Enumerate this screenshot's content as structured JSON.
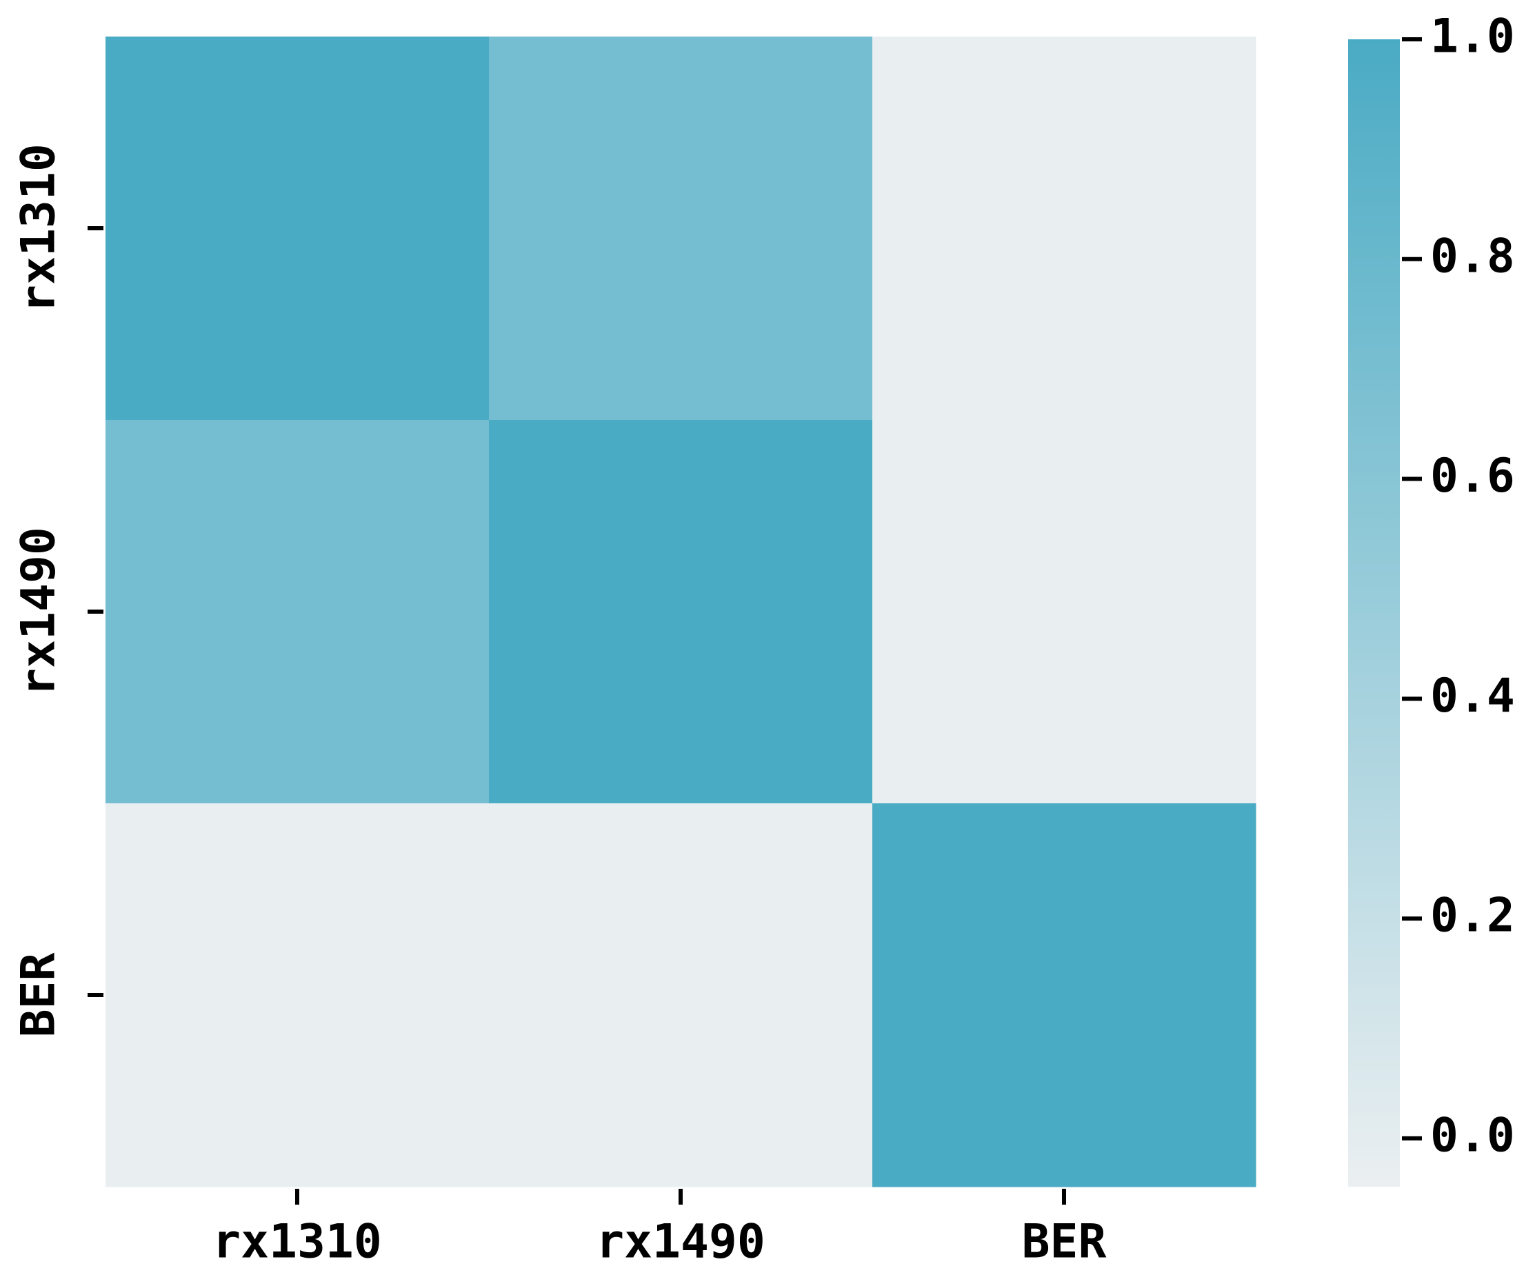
{
  "chart_data": {
    "type": "heatmap",
    "x_categories": [
      "rx1310",
      "rx1490",
      "BER"
    ],
    "y_categories": [
      "rx1310",
      "rx1490",
      "BER"
    ],
    "values": [
      [
        1.0,
        0.72,
        -0.03
      ],
      [
        0.72,
        1.0,
        -0.03
      ],
      [
        -0.03,
        -0.03,
        1.0
      ]
    ],
    "colormap": [
      "#ebeff1",
      "#4aabc4"
    ],
    "zlim": [
      -0.044,
      1.0
    ],
    "zticks": [
      {
        "value": 0,
        "label": "0.0"
      },
      0.2,
      0.4,
      0.6,
      0.8,
      {
        "value": 1,
        "label": "1.0"
      }
    ]
  }
}
